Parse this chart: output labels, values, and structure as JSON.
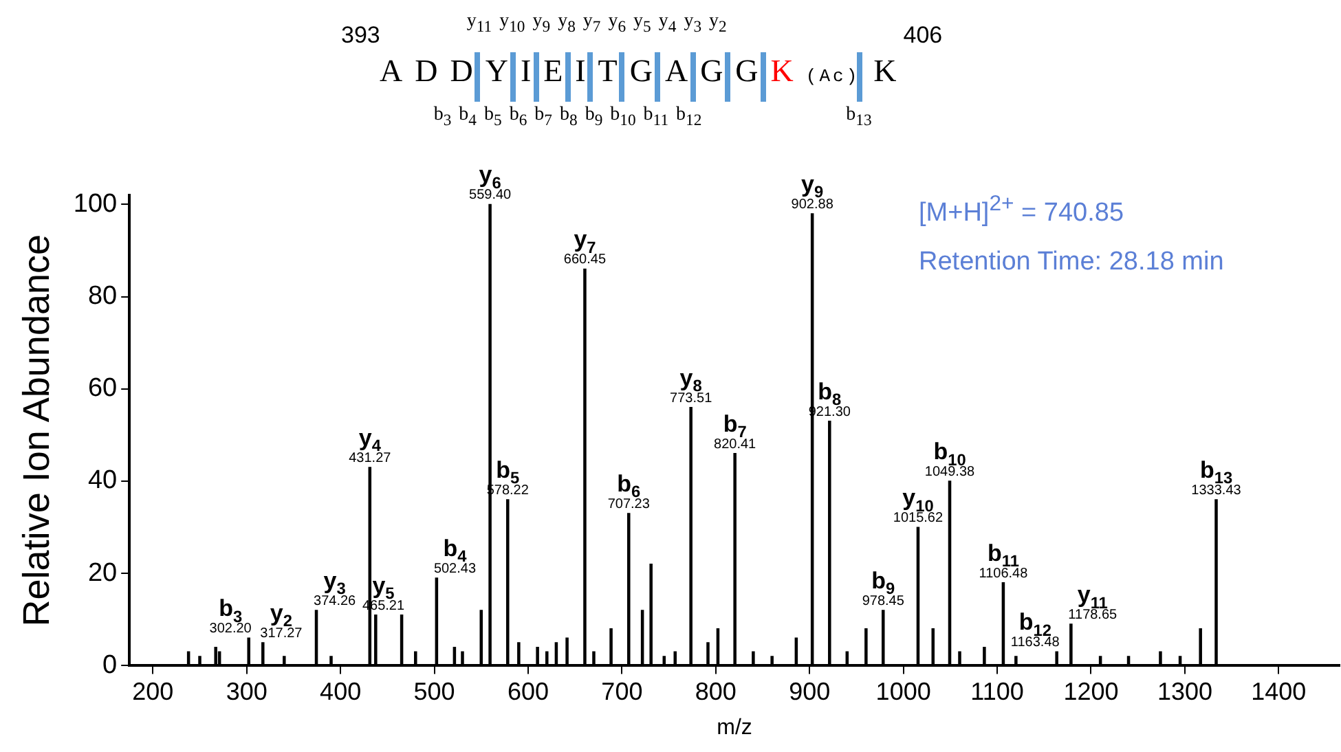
{
  "chart_data": {
    "type": "bar",
    "xlabel": "m/z",
    "ylabel": "Relative Ion Abundance",
    "color": "#000000",
    "grid": false,
    "legend": false,
    "xlim": [
      175,
      1465
    ],
    "xticks": [
      200,
      300,
      400,
      500,
      600,
      700,
      800,
      900,
      1000,
      1100,
      1200,
      1300,
      1400
    ],
    "ylim": [
      0,
      102
    ],
    "yticks": [
      0,
      20,
      40,
      60,
      80,
      100
    ],
    "x": [
      238,
      250,
      267,
      271,
      302.2,
      317.27,
      340,
      374.26,
      390,
      431.27,
      437.5,
      465.21,
      480,
      502.43,
      521.5,
      530,
      550,
      559.4,
      578.22,
      590,
      610,
      620,
      630,
      641.5,
      660.45,
      670,
      688.4,
      707.23,
      721.8,
      731,
      745,
      756.7,
      773.51,
      791.7,
      802.3,
      820.41,
      840,
      860,
      885.8,
      902.88,
      921.3,
      940,
      960.2,
      978.45,
      1015.62,
      1031.6,
      1049.38,
      1060,
      1086.3,
      1106.48,
      1120,
      1163.48,
      1178.65,
      1210,
      1240,
      1274,
      1295,
      1316.7,
      1333.43
    ],
    "values": [
      3,
      2,
      4,
      3,
      6,
      5,
      2,
      12,
      2,
      43,
      11,
      11,
      3,
      19,
      4,
      3,
      12,
      100,
      36,
      5,
      4,
      3,
      5,
      6,
      86,
      3,
      8,
      33,
      12,
      22,
      2,
      3,
      56,
      5,
      8,
      46,
      3,
      2,
      6,
      98,
      53,
      3,
      8,
      12,
      30,
      8,
      40,
      3,
      4,
      18,
      2,
      3,
      9,
      2,
      2,
      3,
      2,
      8,
      36
    ],
    "annotations": [
      "393",
      "ADDYIEITGAGG",
      "K",
      "(Ac)",
      "K",
      "406",
      "y$_{11}$ y$_{10}$ y$_{9}$ y$_{8}$ y$_{7}$ y$_{6}$ y$_{5}$ y$_{4}$ y$_{3}$ y$_{2}$",
      "b$_{3}$ b$_{4}$ b$_{5}$ b$_{6}$ b$_{7}$ b$_{8}$ b$_{9}$ b$_{10}$ b$_{11}$ b$_{12}$",
      "b$_{13}$",
      "[M+H]$^{2+}$ = 740.85",
      "Retention Time: 28.18 min",
      {
        "text": "b$_{3}$",
        "x": 302.2,
        "y": 6
      },
      {
        "text": "302.20",
        "x": 302.2,
        "y": 6
      },
      {
        "text": "y$_{2}$",
        "x": 317.27,
        "y": 5
      },
      {
        "text": "317.27",
        "x": 317.27,
        "y": 5
      },
      {
        "text": "y$_{3}$",
        "x": 374.26,
        "y": 12
      },
      {
        "text": "374.26",
        "x": 374.26,
        "y": 12
      },
      {
        "text": "y$_{4}$",
        "x": 431.27,
        "y": 43
      },
      {
        "text": "431.27",
        "x": 431.27,
        "y": 43
      },
      {
        "text": "y$_{5}$",
        "x": 465.21,
        "y": 11
      },
      {
        "text": "465.21",
        "x": 465.21,
        "y": 11
      },
      {
        "text": "b$_{4}$",
        "x": 502.43,
        "y": 19
      },
      {
        "text": "502.43",
        "x": 502.43,
        "y": 19
      },
      {
        "text": "y$_{6}$",
        "x": 559.4,
        "y": 100
      },
      {
        "text": "559.40",
        "x": 559.4,
        "y": 100
      },
      {
        "text": "b$_{5}$",
        "x": 578.22,
        "y": 36
      },
      {
        "text": "578.22",
        "x": 578.22,
        "y": 36
      },
      {
        "text": "y$_{7}$",
        "x": 660.45,
        "y": 86
      },
      {
        "text": "660.45",
        "x": 660.45,
        "y": 86
      },
      {
        "text": "b$_{6}$",
        "x": 707.23,
        "y": 33
      },
      {
        "text": "707.23",
        "x": 707.23,
        "y": 33
      },
      {
        "text": "y$_{8}$",
        "x": 773.51,
        "y": 56
      },
      {
        "text": "773.51",
        "x": 773.51,
        "y": 56
      },
      {
        "text": "b$_{7}$",
        "x": 820.41,
        "y": 46
      },
      {
        "text": "820.41",
        "x": 820.41,
        "y": 46
      },
      {
        "text": "y$_{9}$",
        "x": 902.88,
        "y": 98
      },
      {
        "text": "902.88",
        "x": 902.88,
        "y": 98
      },
      {
        "text": "b$_{8}$",
        "x": 921.3,
        "y": 53
      },
      {
        "text": "921.30",
        "x": 921.3,
        "y": 53
      },
      {
        "text": "b$_{9}$",
        "x": 978.45,
        "y": 12
      },
      {
        "text": "978.45",
        "x": 978.45,
        "y": 12
      },
      {
        "text": "y$_{10}$",
        "x": 1015.62,
        "y": 30
      },
      {
        "text": "1015.62",
        "x": 1015.62,
        "y": 30
      },
      {
        "text": "b$_{10}$",
        "x": 1049.38,
        "y": 40
      },
      {
        "text": "1049.38",
        "x": 1049.38,
        "y": 40
      },
      {
        "text": "b$_{11}$",
        "x": 1106.48,
        "y": 18
      },
      {
        "text": "1106.48",
        "x": 1106.48,
        "y": 18
      },
      {
        "text": "b$_{12}$",
        "x": 1163.48,
        "y": 3
      },
      {
        "text": "1163.48",
        "x": 1163.48,
        "y": 3
      },
      {
        "text": "y$_{11}$",
        "x": 1178.65,
        "y": 9
      },
      {
        "text": "1178.65",
        "x": 1178.65,
        "y": 9
      },
      {
        "text": "b$_{13}$",
        "x": 1333.43,
        "y": 36
      },
      {
        "text": "1333.43",
        "x": 1333.43,
        "y": 36
      }
    ]
  }
}
